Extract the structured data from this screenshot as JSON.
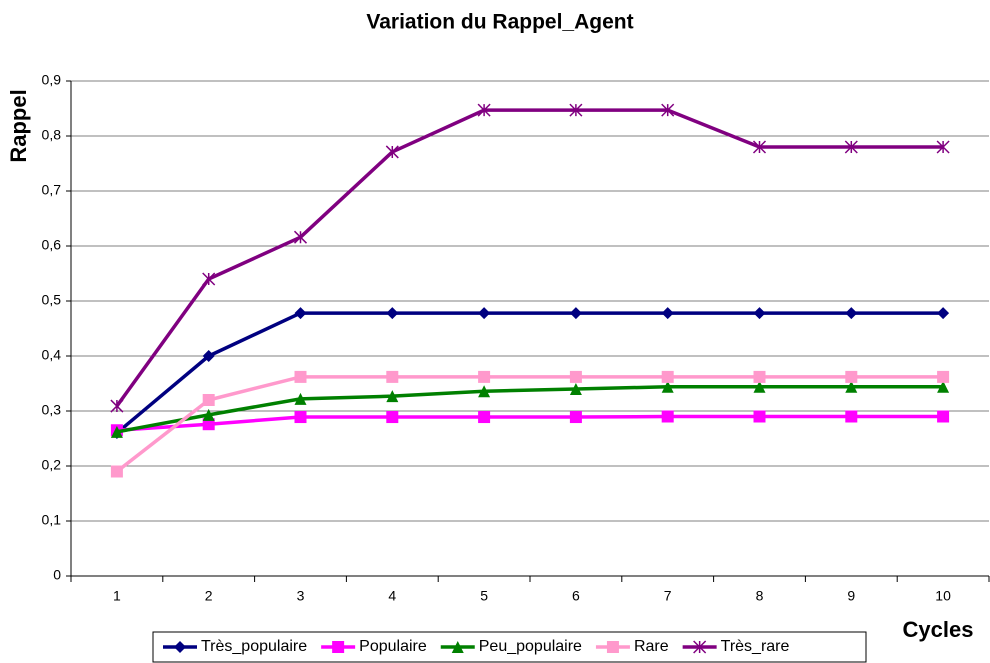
{
  "chart_data": {
    "type": "line",
    "title": "Variation du Rappel_Agent",
    "x_label": "Cycles",
    "y_label": "Rappel",
    "categories": [
      "1",
      "2",
      "3",
      "4",
      "5",
      "6",
      "7",
      "8",
      "9",
      "10"
    ],
    "ylim": [
      0,
      0.9
    ],
    "yticks": [
      0,
      {
        "value": 0.1,
        "label": "0,1"
      },
      {
        "value": 0.2,
        "label": "0,2"
      },
      {
        "value": 0.3,
        "label": "0,3"
      },
      {
        "value": 0.4,
        "label": "0,4"
      },
      {
        "value": 0.5,
        "label": "0,5"
      },
      {
        "value": 0.6,
        "label": "0,6"
      },
      {
        "value": 0.7,
        "label": "0,7"
      },
      {
        "value": 0.8,
        "label": "0,8"
      },
      {
        "value": 0.9,
        "label": "0,9"
      }
    ],
    "grid": true,
    "legend": "bottom",
    "series": [
      {
        "name": "Très_populaire",
        "color": "#000080",
        "marker": "diamond",
        "values": [
          0.26,
          0.4,
          0.478,
          0.478,
          0.478,
          0.478,
          0.478,
          0.478,
          0.478,
          0.478
        ]
      },
      {
        "name": "Populaire",
        "color": "#ff00ff",
        "marker": "square",
        "values": [
          0.265,
          0.276,
          0.289,
          0.289,
          0.289,
          0.289,
          0.29,
          0.29,
          0.29,
          0.29
        ]
      },
      {
        "name": "Peu_populaire",
        "color": "#008000",
        "marker": "triangle",
        "values": [
          0.262,
          0.293,
          0.322,
          0.327,
          0.336,
          0.34,
          0.344,
          0.344,
          0.344,
          0.344
        ]
      },
      {
        "name": "Rare",
        "color": "#ff99cc",
        "marker": "square",
        "values": [
          0.19,
          0.32,
          0.362,
          0.362,
          0.362,
          0.362,
          0.362,
          0.362,
          0.362,
          0.362
        ]
      },
      {
        "name": "Très_rare",
        "color": "#800080",
        "marker": "asterisk",
        "values": [
          0.309,
          0.54,
          0.616,
          0.771,
          0.847,
          0.847,
          0.847,
          0.78,
          0.78,
          0.78
        ]
      }
    ]
  }
}
